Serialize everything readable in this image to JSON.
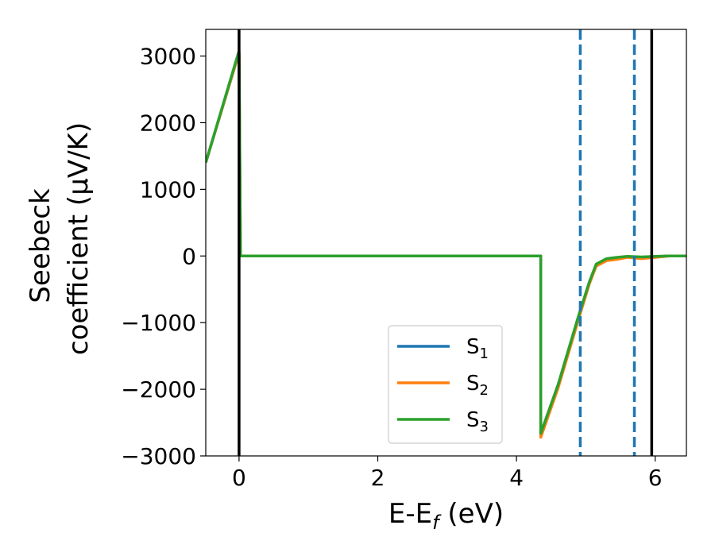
{
  "chart_data": {
    "type": "line",
    "xlabel": "E-E",
    "xlabel_subscript": "f",
    "xlabel_unit": " (eV)",
    "ylabel_line1": "Seebeck",
    "ylabel_line2": "coefficient  (μV/K)",
    "xlim": [
      -0.48,
      6.45
    ],
    "ylim": [
      -3000,
      3400
    ],
    "xticks": [
      0,
      2,
      4,
      6
    ],
    "xtick_labels": [
      "0",
      "2",
      "4",
      "6"
    ],
    "yticks": [
      -3000,
      -2000,
      -1000,
      0,
      1000,
      2000,
      3000
    ],
    "ytick_labels": [
      "−3000",
      "−2000",
      "−1000",
      "0",
      "1000",
      "2000",
      "3000"
    ],
    "grid": false,
    "legend_position": "lower-center",
    "vertical_lines": [
      {
        "x": 0.0,
        "style": "solid",
        "color": "#000000"
      },
      {
        "x": 4.92,
        "style": "dashed",
        "color": "#1f77b4"
      },
      {
        "x": 5.7,
        "style": "dashed",
        "color": "#1f77b4"
      },
      {
        "x": 5.95,
        "style": "solid",
        "color": "#000000"
      }
    ],
    "series": [
      {
        "name": "S",
        "sub": "1",
        "color": "#1f77b4",
        "points": [
          [
            -0.48,
            1400
          ],
          [
            0.0,
            3050
          ],
          [
            0.02,
            0
          ],
          [
            4.35,
            0
          ],
          [
            4.35,
            -2680
          ],
          [
            4.6,
            -1950
          ],
          [
            4.9,
            -900
          ],
          [
            5.05,
            -400
          ],
          [
            5.15,
            -130
          ],
          [
            5.3,
            -50
          ],
          [
            5.45,
            -30
          ],
          [
            5.6,
            -10
          ],
          [
            5.8,
            -20
          ],
          [
            6.0,
            -10
          ],
          [
            6.2,
            0
          ],
          [
            6.45,
            0
          ]
        ]
      },
      {
        "name": "S",
        "sub": "2",
        "color": "#ff7f0e",
        "points": [
          [
            -0.48,
            1400
          ],
          [
            0.0,
            3050
          ],
          [
            0.02,
            0
          ],
          [
            4.35,
            0
          ],
          [
            4.35,
            -2720
          ],
          [
            4.6,
            -1980
          ],
          [
            4.9,
            -930
          ],
          [
            5.05,
            -420
          ],
          [
            5.15,
            -150
          ],
          [
            5.3,
            -70
          ],
          [
            5.45,
            -50
          ],
          [
            5.6,
            -20
          ],
          [
            5.8,
            -40
          ],
          [
            6.0,
            -20
          ],
          [
            6.2,
            0
          ],
          [
            6.45,
            0
          ]
        ]
      },
      {
        "name": "S",
        "sub": "3",
        "color": "#2ca02c",
        "points": [
          [
            -0.48,
            1400
          ],
          [
            0.0,
            3080
          ],
          [
            0.02,
            0
          ],
          [
            4.35,
            0
          ],
          [
            4.35,
            -2660
          ],
          [
            4.6,
            -1930
          ],
          [
            4.9,
            -880
          ],
          [
            5.05,
            -390
          ],
          [
            5.15,
            -120
          ],
          [
            5.3,
            -40
          ],
          [
            5.45,
            -20
          ],
          [
            5.6,
            -5
          ],
          [
            5.8,
            -15
          ],
          [
            6.0,
            -5
          ],
          [
            6.2,
            0
          ],
          [
            6.45,
            0
          ]
        ]
      }
    ]
  }
}
